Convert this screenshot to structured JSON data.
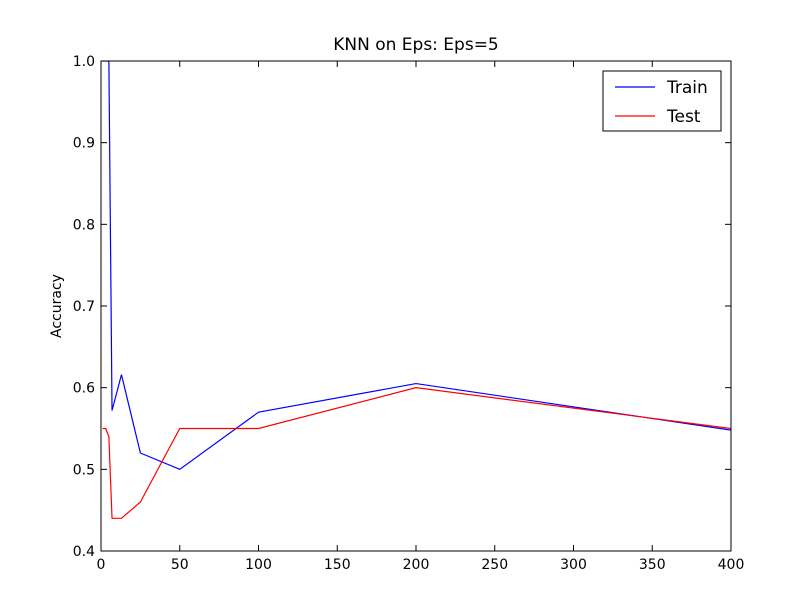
{
  "chart_data": {
    "type": "line",
    "title": "KNN on Eps: Eps=5",
    "xlabel": "",
    "ylabel": "Accuracy",
    "xlim": [
      0,
      400
    ],
    "ylim": [
      0.4,
      1.0
    ],
    "xticks": [
      0,
      50,
      100,
      150,
      200,
      250,
      300,
      350,
      400
    ],
    "yticks": [
      0.4,
      0.5,
      0.6,
      0.7,
      0.8,
      0.9,
      1.0
    ],
    "ytick_labels": [
      "0.4",
      "0.5",
      "0.6",
      "0.7",
      "0.8",
      "0.9",
      "1.0"
    ],
    "grid": false,
    "legend": "top-right",
    "x": [
      1,
      3,
      5,
      7,
      13,
      25,
      50,
      100,
      200,
      400
    ],
    "series": [
      {
        "name": "Train",
        "color": "#0000ff",
        "values": [
          1.0,
          1.0,
          1.0,
          0.572,
          0.616,
          0.52,
          0.5,
          0.57,
          0.605,
          0.548
        ]
      },
      {
        "name": "Test",
        "color": "#ff0000",
        "values": [
          0.55,
          0.55,
          0.54,
          0.44,
          0.44,
          0.46,
          0.55,
          0.55,
          0.6,
          0.55
        ]
      }
    ]
  }
}
